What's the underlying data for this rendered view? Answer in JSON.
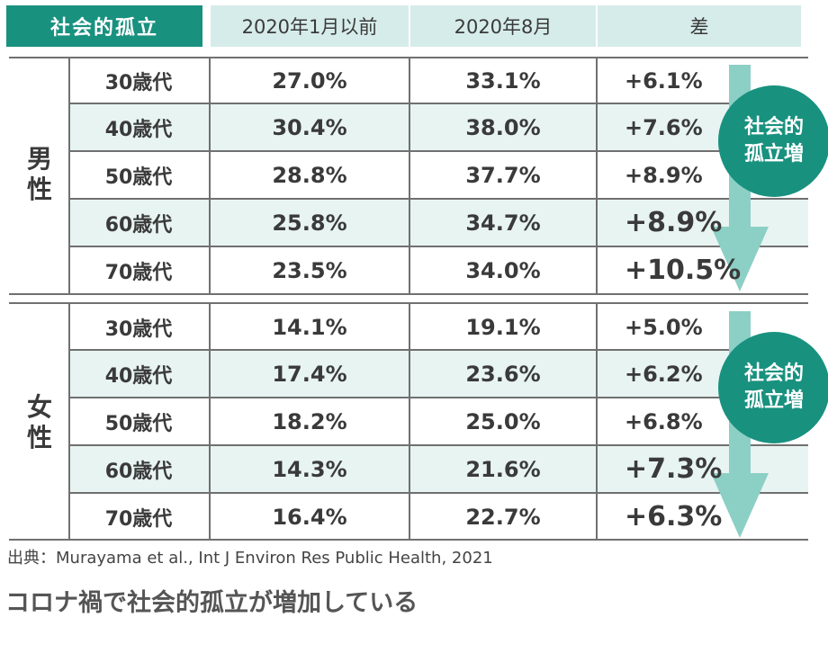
{
  "chart_data": {
    "type": "table",
    "title": "社会的孤立",
    "columns": [
      "2020年1月以前",
      "2020年8月",
      "差"
    ],
    "groups": [
      {
        "label": "男性",
        "rows": [
          {
            "age": "30歳代",
            "before": "27.0%",
            "after": "33.1%",
            "diff": "+6.1%"
          },
          {
            "age": "40歳代",
            "before": "30.4%",
            "after": "38.0%",
            "diff": "+7.6%"
          },
          {
            "age": "50歳代",
            "before": "28.8%",
            "after": "37.7%",
            "diff": "+8.9%"
          },
          {
            "age": "60歳代",
            "before": "25.8%",
            "after": "34.7%",
            "diff": "+8.9%"
          },
          {
            "age": "70歳代",
            "before": "23.5%",
            "after": "34.0%",
            "diff": "+10.5%"
          }
        ],
        "annotation": "社会的孤立増"
      },
      {
        "label": "女性",
        "rows": [
          {
            "age": "30歳代",
            "before": "14.1%",
            "after": "19.1%",
            "diff": "+5.0%"
          },
          {
            "age": "40歳代",
            "before": "17.4%",
            "after": "23.6%",
            "diff": "+6.2%"
          },
          {
            "age": "50歳代",
            "before": "18.2%",
            "after": "25.0%",
            "diff": "+6.8%"
          },
          {
            "age": "60歳代",
            "before": "14.3%",
            "after": "21.6%",
            "diff": "+7.3%"
          },
          {
            "age": "70歳代",
            "before": "16.4%",
            "after": "22.7%",
            "diff": "+6.3%"
          }
        ],
        "annotation": "社会的孤立増"
      }
    ],
    "source": "出典：Murayama et al., Int J Environ Res Public Health, 2021",
    "caption": "コロナ禍で社会的孤立が増加している"
  },
  "colors": {
    "accent": "#19917f",
    "header_bg": "#d6ecea",
    "row_shade": "#e8f4f2",
    "arrow": "#8ccfc5"
  }
}
